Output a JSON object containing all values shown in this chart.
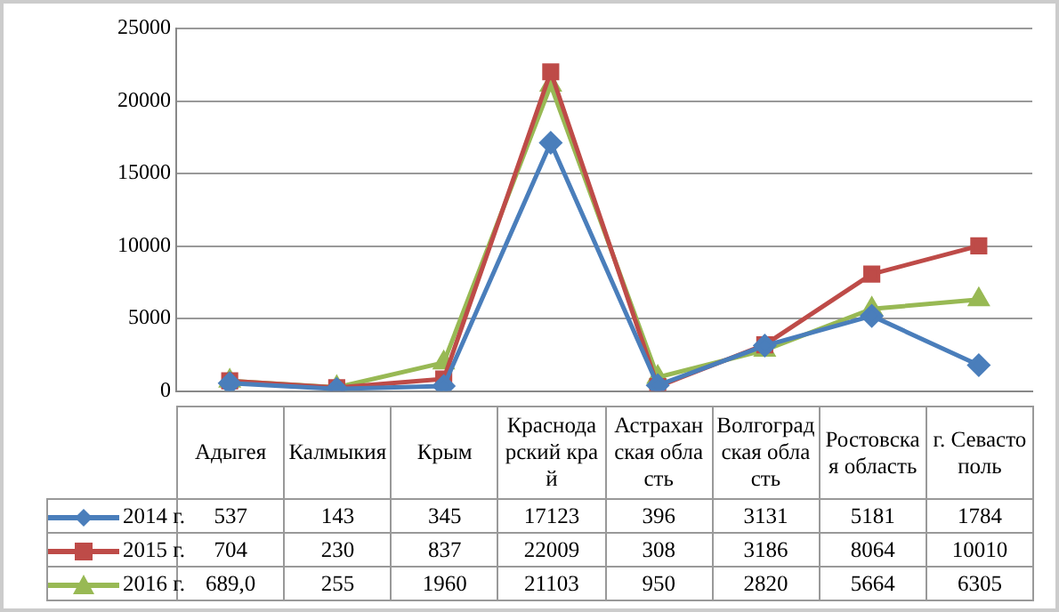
{
  "chart_data": {
    "type": "line",
    "categories": [
      "Адыгея",
      "Калмыкия",
      "Крым",
      "Краснодарский край",
      "Астраханская область",
      "Волгоградская область",
      "Ростовская область",
      "г. Севастополь"
    ],
    "series": [
      {
        "name": "2014 г.",
        "color": "#4a7ebb",
        "marker": "diamond",
        "values": [
          537,
          143,
          345,
          17123,
          396,
          3131,
          5181,
          1784
        ],
        "value_labels": [
          "537",
          "143",
          "345",
          "17123",
          "396",
          "3131",
          "5181",
          "1784"
        ]
      },
      {
        "name": "2015 г.",
        "color": "#be4b48",
        "marker": "square",
        "values": [
          704,
          230,
          837,
          22009,
          308,
          3186,
          8064,
          10010
        ],
        "value_labels": [
          "704",
          "230",
          "837",
          "22009",
          "308",
          "3186",
          "8064",
          "10010"
        ]
      },
      {
        "name": "2016 г.",
        "color": "#98b954",
        "marker": "triangle",
        "values": [
          689.0,
          255,
          1960,
          21103,
          950,
          2820,
          5664,
          6305
        ],
        "value_labels": [
          "689,0",
          "255",
          "1960",
          "21103",
          "950",
          "2820",
          "5664",
          "6305"
        ]
      }
    ],
    "ylim": [
      0,
      25000
    ],
    "yticks": [
      0,
      5000,
      10000,
      15000,
      20000,
      25000
    ],
    "grid": "y",
    "legend": "bottom",
    "line_style": "solid"
  }
}
